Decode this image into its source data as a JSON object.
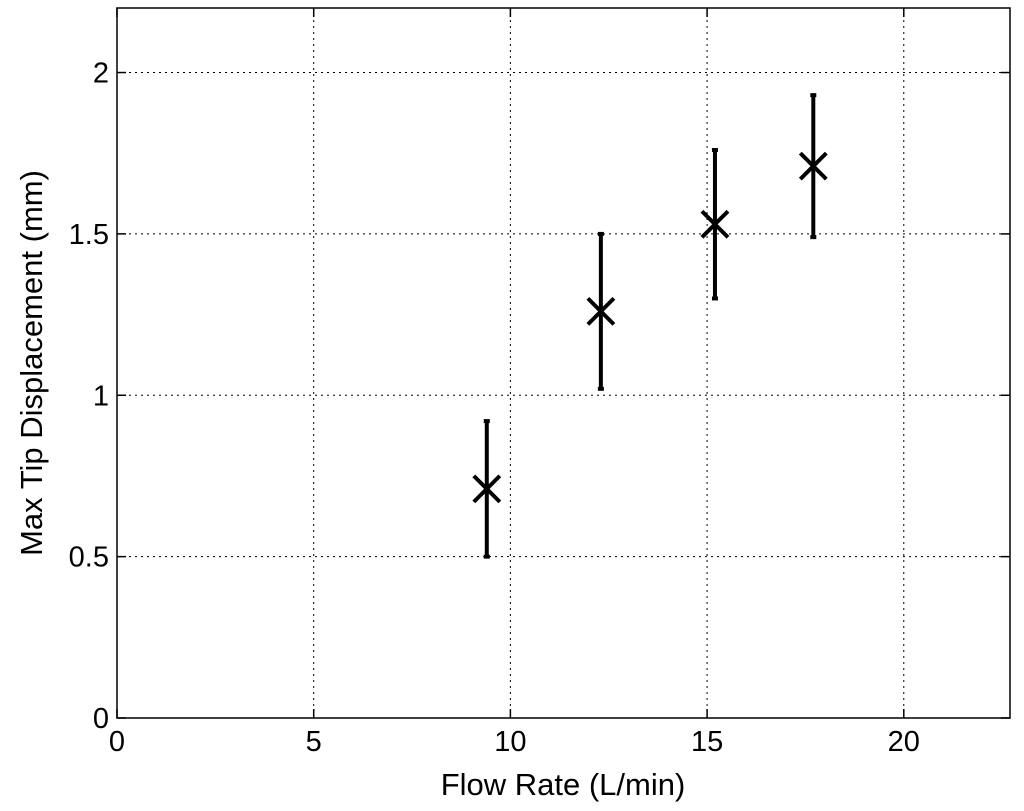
{
  "chart_data": {
    "type": "scatter",
    "title": "",
    "xlabel": "Flow Rate (L/min)",
    "ylabel": "Max Tip Displacement (mm)",
    "xlim": [
      0,
      22.7
    ],
    "ylim": [
      0,
      2.2
    ],
    "xticks": [
      0,
      5,
      10,
      15,
      20
    ],
    "yticks": [
      0,
      0.5,
      1,
      1.5,
      2
    ],
    "xtick_labels": [
      "0",
      "5",
      "10",
      "15",
      "20"
    ],
    "ytick_labels": [
      "0",
      "0.5",
      "1",
      "1.5",
      "2"
    ],
    "grid": true,
    "marker": "x",
    "color": "#000000",
    "points": [
      {
        "x": 9.4,
        "y": 0.71,
        "y_lower": 0.5,
        "y_upper": 0.92
      },
      {
        "x": 12.3,
        "y": 1.26,
        "y_lower": 1.02,
        "y_upper": 1.5
      },
      {
        "x": 15.2,
        "y": 1.53,
        "y_lower": 1.3,
        "y_upper": 1.76
      },
      {
        "x": 17.7,
        "y": 1.71,
        "y_lower": 1.49,
        "y_upper": 1.93
      }
    ]
  }
}
